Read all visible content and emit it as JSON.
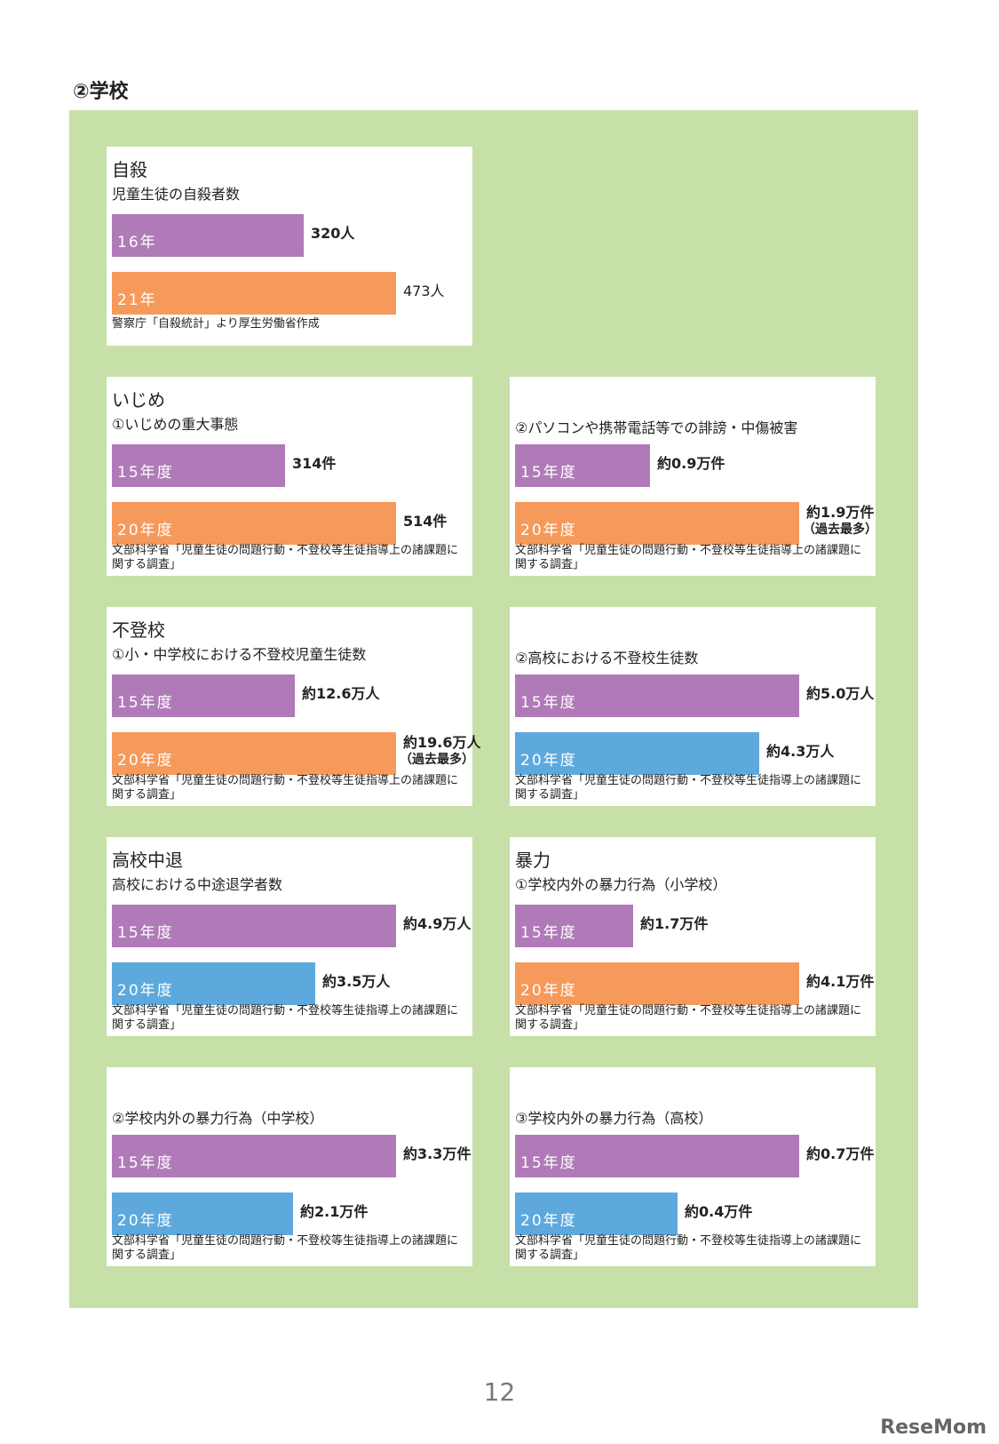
{
  "section_title": "②学校",
  "colors": {
    "purple": "#b07ab8",
    "orange": "#f59a5b",
    "blue": "#5da9dd",
    "green": "#c6e0a8"
  },
  "panels": [
    {
      "title": "自殺",
      "subtitle": "児童生徒の自殺者数",
      "bars": [
        {
          "label": "16年",
          "value_text": "320人",
          "value": 320,
          "color": "#b07ab8"
        },
        {
          "label": "21年",
          "value_text": "473人",
          "value": 473,
          "color": "#f59a5b"
        }
      ],
      "source": "警察庁「自殺統計」より厚生労働省作成"
    },
    {
      "title": "いじめ",
      "subtitle": "①いじめの重大事態",
      "bars": [
        {
          "label": "15年度",
          "value_text": "314件",
          "value": 314,
          "color": "#b07ab8"
        },
        {
          "label": "20年度",
          "value_text": "514件",
          "value": 514,
          "color": "#f59a5b"
        }
      ],
      "source": "文部科学省「児童生徒の問題行動・不登校等生徒指導上の諸課題に関する調査」"
    },
    {
      "title": "",
      "subtitle": "②パソコンや携帯電話等での誹謗・中傷被害",
      "bars": [
        {
          "label": "15年度",
          "value_text": "約0.9万件",
          "value": 0.9,
          "color": "#b07ab8"
        },
        {
          "label": "20年度",
          "value_text": "約1.9万件",
          "note": "（過去最多）",
          "value": 1.9,
          "color": "#f59a5b"
        }
      ],
      "source": "文部科学省「児童生徒の問題行動・不登校等生徒指導上の諸課題に関する調査」"
    },
    {
      "title": "不登校",
      "subtitle": "①小・中学校における不登校児童生徒数",
      "bars": [
        {
          "label": "15年度",
          "value_text": "約12.6万人",
          "value": 12.6,
          "color": "#b07ab8"
        },
        {
          "label": "20年度",
          "value_text": "約19.6万人",
          "note": "（過去最多）",
          "value": 19.6,
          "color": "#f59a5b"
        }
      ],
      "source": "文部科学省「児童生徒の問題行動・不登校等生徒指導上の諸課題に関する調査」"
    },
    {
      "title": "",
      "subtitle": "②高校における不登校生徒数",
      "bars": [
        {
          "label": "15年度",
          "value_text": "約5.0万人",
          "value": 5.0,
          "color": "#b07ab8"
        },
        {
          "label": "20年度",
          "value_text": "約4.3万人",
          "value": 4.3,
          "color": "#5da9dd"
        }
      ],
      "source": "文部科学省「児童生徒の問題行動・不登校等生徒指導上の諸課題に関する調査」"
    },
    {
      "title": "高校中退",
      "subtitle": "高校における中途退学者数",
      "bars": [
        {
          "label": "15年度",
          "value_text": "約4.9万人",
          "value": 4.9,
          "color": "#b07ab8"
        },
        {
          "label": "20年度",
          "value_text": "約3.5万人",
          "value": 3.5,
          "color": "#5da9dd"
        }
      ],
      "source": "文部科学省「児童生徒の問題行動・不登校等生徒指導上の諸課題に関する調査」"
    },
    {
      "title": "暴力",
      "subtitle": "①学校内外の暴力行為（小学校）",
      "bars": [
        {
          "label": "15年度",
          "value_text": "約1.7万件",
          "value": 1.7,
          "color": "#b07ab8"
        },
        {
          "label": "20年度",
          "value_text": "約4.1万件",
          "value": 4.1,
          "color": "#f59a5b"
        }
      ],
      "source": "文部科学省「児童生徒の問題行動・不登校等生徒指導上の諸課題に関する調査」"
    },
    {
      "title": "",
      "subtitle": "②学校内外の暴力行為（中学校）",
      "bars": [
        {
          "label": "15年度",
          "value_text": "約3.3万件",
          "value": 3.3,
          "color": "#b07ab8"
        },
        {
          "label": "20年度",
          "value_text": "約2.1万件",
          "value": 2.1,
          "color": "#5da9dd"
        }
      ],
      "source": "文部科学省「児童生徒の問題行動・不登校等生徒指導上の諸課題に関する調査」"
    },
    {
      "title": "",
      "subtitle": "③学校内外の暴力行為（高校）",
      "bars": [
        {
          "label": "15年度",
          "value_text": "約0.7万件",
          "value": 0.7,
          "color": "#b07ab8"
        },
        {
          "label": "20年度",
          "value_text": "約0.4万件",
          "value": 0.4,
          "color": "#5da9dd"
        }
      ],
      "source": "文部科学省「児童生徒の問題行動・不登校等生徒指導上の諸課題に関する調査」"
    }
  ],
  "chart_data": [
    {
      "type": "bar",
      "title": "自殺",
      "subtitle": "児童生徒の自殺者数",
      "categories": [
        "16年",
        "21年"
      ],
      "values": [
        320,
        473
      ],
      "unit": "人"
    },
    {
      "type": "bar",
      "title": "いじめ",
      "subtitle": "①いじめの重大事態",
      "categories": [
        "15年度",
        "20年度"
      ],
      "values": [
        314,
        514
      ],
      "unit": "件"
    },
    {
      "type": "bar",
      "subtitle": "②パソコンや携帯電話等での誹謗・中傷被害",
      "categories": [
        "15年度",
        "20年度"
      ],
      "values": [
        0.9,
        1.9
      ],
      "unit": "万件"
    },
    {
      "type": "bar",
      "title": "不登校",
      "subtitle": "①小・中学校における不登校児童生徒数",
      "categories": [
        "15年度",
        "20年度"
      ],
      "values": [
        12.6,
        19.6
      ],
      "unit": "万人"
    },
    {
      "type": "bar",
      "subtitle": "②高校における不登校生徒数",
      "categories": [
        "15年度",
        "20年度"
      ],
      "values": [
        5.0,
        4.3
      ],
      "unit": "万人"
    },
    {
      "type": "bar",
      "title": "高校中退",
      "subtitle": "高校における中途退学者数",
      "categories": [
        "15年度",
        "20年度"
      ],
      "values": [
        4.9,
        3.5
      ],
      "unit": "万人"
    },
    {
      "type": "bar",
      "title": "暴力",
      "subtitle": "①学校内外の暴力行為（小学校）",
      "categories": [
        "15年度",
        "20年度"
      ],
      "values": [
        1.7,
        4.1
      ],
      "unit": "万件"
    },
    {
      "type": "bar",
      "subtitle": "②学校内外の暴力行為（中学校）",
      "categories": [
        "15年度",
        "20年度"
      ],
      "values": [
        3.3,
        2.1
      ],
      "unit": "万件"
    },
    {
      "type": "bar",
      "subtitle": "③学校内外の暴力行為（高校）",
      "categories": [
        "15年度",
        "20年度"
      ],
      "values": [
        0.7,
        0.4
      ],
      "unit": "万件"
    }
  ],
  "page_number": "12",
  "logo_text": "ReseMom"
}
